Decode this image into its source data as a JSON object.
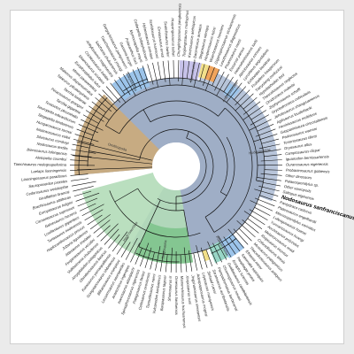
{
  "figure": {
    "colors": {
      "trunk": "#8ea0bc",
      "outer_blue": "#9fb0cc",
      "tan": "#c7ab82",
      "green": "#b2dbb8",
      "green_dark": "#7cc389",
      "sky": "#9cc4ea",
      "lavender": "#c7c2ea",
      "orange": "#f0a45c",
      "yellow": "#f2e08a",
      "teal": "#98d6c6",
      "line": "#111111"
    },
    "highlighted_taxon": "Nodosaurus sanfranciscanus",
    "clade_labels": [
      "Ankylosauria",
      "Dacentrurinae",
      "Ankylosauridae",
      "Nodosauridae",
      "Polacanthidae",
      "Stegosauria",
      "Hadrosauridae",
      "Ornithopoda"
    ],
    "taxa": [
      "Liaoningosaurus paradoxus",
      "Laelaps liaoningensis",
      "Tianchisaurus nedegoapeferima",
      "Aletopelta coombsi",
      "Bienosaurus lufengensis",
      "Nodosaurus textilis",
      "Silvisaurus condrayi",
      "Niobrarasaurus coleii",
      "Hungarosaurus tormai",
      "Stegopelta landerensis",
      "Sauropelta edwardsorum",
      "Texasetes pleurohalio",
      "Tarchia gigantea",
      "Pinacosaurus grangeri",
      "Tarchia kielanae",
      "Talarurus plicatospineus",
      "Maleevus disparoserratus",
      "Minmi paravertebra",
      "Euoplocephalus tutus",
      "Shamosaurus scutatus",
      "Crichtonsaurus bohlini",
      "Ankylosaurus magniventris",
      "Saichania chulsanensis",
      "Tianzhenosaurus youngi",
      "Gargoyleosaurus parkpinorum",
      "Gastonia burgei",
      "Polacanthus foxii",
      "Mymoorapelta maysi",
      "Cedarpelta bilbeyhallorum",
      "Hylaeosaurus armatus",
      "Scelidosaurus harrisonii",
      "Emausaurus ernsti",
      "Scutellosaurus lawleri",
      "Huayangosaurus taibaii",
      "Chungkingosaurus jiangbeiensis",
      "Tuojiangosaurus multispinus",
      "Kentrosaurus aethiopicus",
      "Dacentrurus armatus",
      "Stegosaurus stenops",
      "Hesperosaurus mjosi",
      "Wuerhosaurus homheni",
      "Gigantspinosaurus sichuanensis",
      "Lesothosaurus diagnosticus",
      "Pisanosaurus mertii",
      "Eocursor parvus",
      "Heterodontosaurus tucki",
      "Abrictosaurus consors",
      "Lycorhinus angustidens",
      "Echinodon becklesii",
      "Fruitadens haagarorum",
      "Tianyulong confuciusi",
      "Hypsilophodon foxii",
      "Thescelosaurus neglectus",
      "Orodromeus makelai",
      "Zephyrosaurus schaffi",
      "Oryctodromeus cubicularis",
      "Jeholosaurus shangyuanensis",
      "Agilisaurus louderbacki",
      "Hexinlusaurus multidens",
      "Gasparinisaura cincosaltensis",
      "Parksosaurus warreni",
      "Tenontosaurus tilletti",
      "Dryosaurus altus",
      "Camptosaurus dispar",
      "Iguanodon bernissartensis",
      "Ouranosaurus nigeriensis",
      "Probactrosaurus gobiensis",
      "Other dinosaurs",
      "Palaeospondylus sp.",
      "Other sauropods",
      "Saltopus elginensis",
      "Nodosaurus sanfranciscanus",
      "Pantydraco caducus",
      "Plateosaurus engelhardti",
      "Massospondylus carinatus",
      "Lufengosaurus huenei",
      "Yunnanosaurus huangi",
      "Anchisaurus polyzelus",
      "Melanorosaurus readi",
      "Riojasaurus incertus",
      "Coloradisaurus brevis",
      "Mussaurus patagonicus",
      "Thecodontosaurus antiquus",
      "Efraasia minor",
      "Saturnalia tupiniquim",
      "Panphagia protos",
      "Eoraptor lunensis",
      "Guaibasaurus candelariensis",
      "Chromogisaurus novasi",
      "Pampadromaeus barberenai",
      "Sarahsaurus aurifontanalis",
      "Seitaad ruessi",
      "Leyesaurus marayensis",
      "Adeopapposaurus mognai",
      "Jingshanosaurus xinwaensis",
      "Xixiposaurus suni",
      "Mamenchisaurus hochuanensis",
      "Omeisaurus tianfuensis",
      "Shunosaurus lii",
      "Barapasaurus tagorei",
      "Vulcanodon karibaensis",
      "Tazoudasaurus naimi",
      "Cetiosaurus oxoniensis",
      "Patagosaurus fariasi",
      "Spinophorosaurus nigerensis",
      "Isanosaurus attavipachi",
      "Antetonitrus ingenipes",
      "Lessemsaurus sauropoides",
      "Blikanasaurus cromptoni",
      "Gongxianosaurus shibeiensis",
      "Kotasaurus yamanpalliensis",
      "Ohmdenosaurus liasicus",
      "Amygdalodon patagonicus",
      "Volkheimeria chubutensis",
      "Ferganasaurus verzilini",
      "Atlasaurus imelakei",
      "Jobaria tiguidensis",
      "Haplocanthosaurus priscus",
      "Turiasaurus riodevensis",
      "Losillasaurus giganteus",
      "Galvesaurus herreroi",
      "Camarasaurus supremus",
      "Europasaurus holgeri",
      "Brachiosaurus altithorax",
      "Giraffatitan brancai",
      "Cedarosaurus weiskopfae",
      "Sauroposeidon proteles"
    ]
  }
}
